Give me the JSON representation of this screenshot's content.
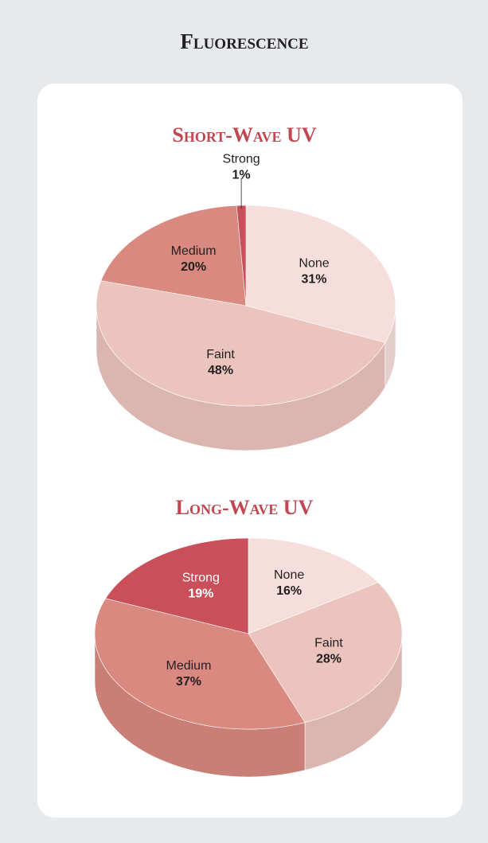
{
  "page": {
    "title": "Fluorescence"
  },
  "chart_data": [
    {
      "type": "pie",
      "title": "Short-Wave UV",
      "categories": [
        "None",
        "Faint",
        "Medium",
        "Strong"
      ],
      "values": [
        31,
        48,
        20,
        1
      ],
      "value_labels": [
        "31%",
        "48%",
        "20%",
        "1%"
      ],
      "colors": [
        "#f5dedb",
        "#ebc4bd",
        "#d9897f",
        "#c9505a"
      ]
    },
    {
      "type": "pie",
      "title": "Long-Wave UV",
      "categories": [
        "None",
        "Faint",
        "Medium",
        "Strong"
      ],
      "values": [
        16,
        28,
        37,
        19
      ],
      "value_labels": [
        "16%",
        "28%",
        "37%",
        "19%"
      ],
      "colors": [
        "#f5dedb",
        "#ebc4bd",
        "#d9897f",
        "#c9505a"
      ]
    }
  ]
}
